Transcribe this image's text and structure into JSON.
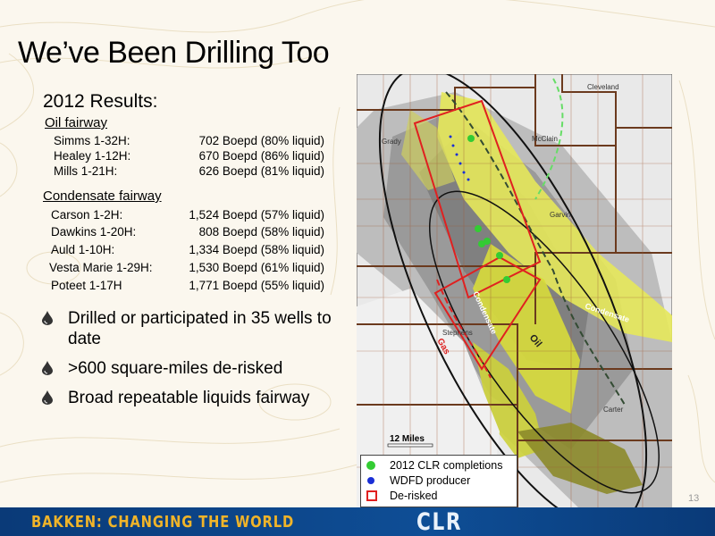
{
  "slide": {
    "title": "We’ve Been Drilling Too",
    "results_heading": "2012 Results:",
    "page_number": "13"
  },
  "oil_fairway": {
    "heading": "Oil fairway",
    "wells": [
      {
        "name": "Simms 1-32H:",
        "rate": "702 Boepd (80% liquid)"
      },
      {
        "name": "Healey 1-12H:",
        "rate": "670 Boepd (86% liquid)"
      },
      {
        "name": "Mills 1-21H:",
        "rate": "626 Boepd (81% liquid)"
      }
    ]
  },
  "condensate_fairway": {
    "heading": "Condensate fairway",
    "wells": [
      {
        "name": "Carson 1-2H:",
        "rate": "1,524 Boepd (57% liquid)"
      },
      {
        "name": "Dawkins 1-20H:",
        "rate": "808 Boepd (58% liquid)"
      },
      {
        "name": "Auld 1-10H:",
        "rate": "1,334 Boepd (58% liquid)"
      },
      {
        "name": "Vesta Marie 1-29H:",
        "rate": "1,530 Boepd (61% liquid)"
      },
      {
        "name": "Poteet 1-17H",
        "rate": "1,771 Boepd (55% liquid)"
      }
    ]
  },
  "bullets": [
    "Drilled or participated in 35 wells to date",
    ">600 square-miles de-risked",
    "Broad repeatable liquids fairway"
  ],
  "map": {
    "county_labels": [
      "Cleveland",
      "Grady",
      "McClain",
      "Garvin",
      "Stephens",
      "Carter"
    ],
    "fairway_labels": {
      "condensate_left": "Condensate",
      "condensate_right": "Condensate",
      "oil": "Oil",
      "gas": "Gas"
    },
    "scale_label": "12 Miles",
    "legend": [
      {
        "label": "2012 CLR completions",
        "icon": "green-dot",
        "color": "#33cc33"
      },
      {
        "label": "WDFD producer",
        "icon": "blue-dot",
        "color": "#1a2fd6"
      },
      {
        "label": "De-risked",
        "icon": "red-square",
        "color": "#e02020"
      }
    ]
  },
  "footer": {
    "tagline": "BAKKEN: CHANGING THE WORLD",
    "logo": "CLR"
  },
  "colors": {
    "footer_blue": "#0e4e96",
    "tagline_gold": "#f0b429",
    "derisked_red": "#e02020",
    "completion_green": "#33cc33",
    "producer_blue": "#1a2fd6"
  }
}
